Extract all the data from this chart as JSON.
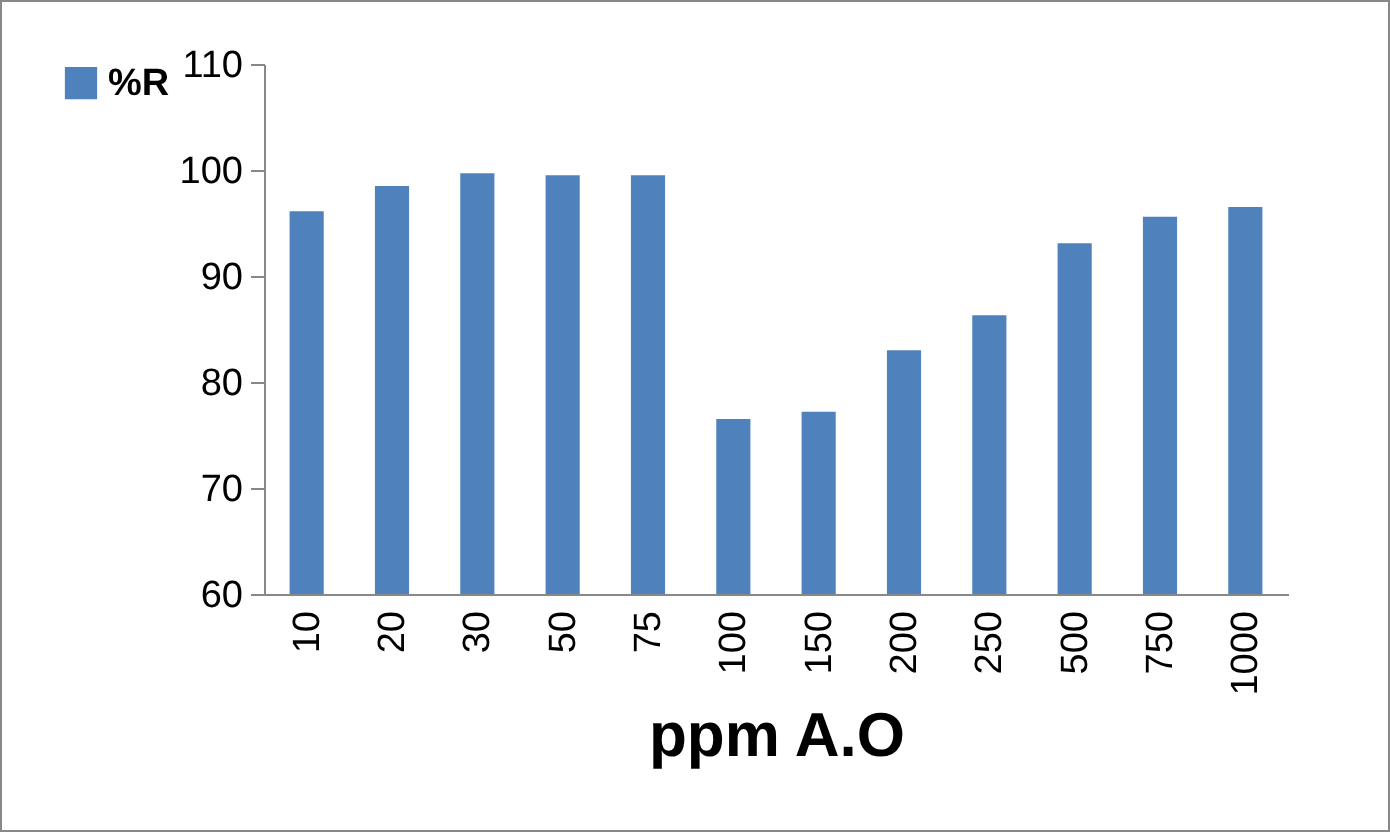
{
  "chart_data": {
    "type": "bar",
    "xlabel": "ppm A.O",
    "categories": [
      "10",
      "20",
      "30",
      "50",
      "75",
      "100",
      "150",
      "200",
      "250",
      "500",
      "750",
      "1000"
    ],
    "series": [
      {
        "name": "%R",
        "color": "#4f81bd",
        "values": [
          96.1,
          98.5,
          99.7,
          99.5,
          99.5,
          76.5,
          77.2,
          83.0,
          86.3,
          93.1,
          95.6,
          96.5
        ]
      }
    ],
    "ylim": [
      60,
      110
    ],
    "yticks": [
      60,
      70,
      80,
      90,
      100,
      110
    ],
    "grid": false,
    "legend": "left"
  }
}
